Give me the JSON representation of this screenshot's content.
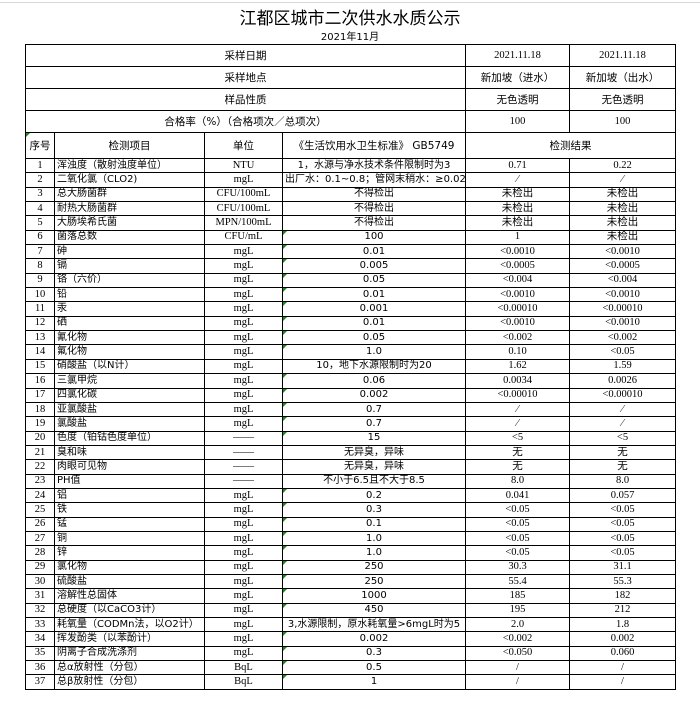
{
  "title": "江都区城市二次供水水质公示",
  "subtitle": "2021年11月",
  "summary": [
    {
      "label": "采样日期",
      "v1": "2021.11.18",
      "v2": "2021.11.18"
    },
    {
      "label": "采样地点",
      "v1": "新加坡（进水）",
      "v2": "新加坡（出水）"
    },
    {
      "label": "样品性质",
      "v1": "无色透明",
      "v2": "无色透明"
    },
    {
      "label": "合格率（%）（合格项次／总项次）",
      "v1": "100",
      "v2": "100"
    }
  ],
  "headers": {
    "no": "序号",
    "item": "检测项目",
    "unit": "单位",
    "standard": "《生活饮用水卫生标准》 GB5749",
    "result": "检测结果"
  },
  "rows": [
    [
      "1",
      "浑浊度（散射浊度单位）",
      "NTU",
      "1，水源与净水技术条件限制时为3",
      "0.71",
      "0.22"
    ],
    [
      "2",
      "二氧化氯（CLO2)",
      "mgL",
      "出厂水：0.1~0.8；管网末稍水：≥0.02",
      "⁄",
      "⁄"
    ],
    [
      "3",
      "总大肠菌群",
      "CFU/100mL",
      "不得检出",
      "未检出",
      "未检出"
    ],
    [
      "4",
      "耐热大肠菌群",
      "CFU/100mL",
      "不得检出",
      "未检出",
      "未检出"
    ],
    [
      "5",
      "大肠埃希氏菌",
      "MPN/100mL",
      "不得检出",
      "未检出",
      "未检出"
    ],
    [
      "6",
      "菌落总数",
      "CFU/mL",
      "100",
      "1",
      "未检出"
    ],
    [
      "7",
      "砷",
      "mgL",
      "0.01",
      "<0.0010",
      "<0.0010"
    ],
    [
      "8",
      "镉",
      "mgL",
      "0.005",
      "<0.0005",
      "<0.0005"
    ],
    [
      "9",
      "铬（六价）",
      "mgL",
      "0.05",
      "<0.004",
      "<0.004"
    ],
    [
      "10",
      "铅",
      "mgL",
      "0.01",
      "<0.0010",
      "<0.0010"
    ],
    [
      "11",
      "汞",
      "mgL",
      "0.001",
      "<0.00010",
      "<0.00010"
    ],
    [
      "12",
      "硒",
      "mgL",
      "0.01",
      "<0.0010",
      "<0.0010"
    ],
    [
      "13",
      "氰化物",
      "mgL",
      "0.05",
      "<0.002",
      "<0.002"
    ],
    [
      "14",
      "氟化物",
      "mgL",
      "1.0",
      "0.10",
      "<0.05"
    ],
    [
      "15",
      "硝酸盐（以N计）",
      "mgL",
      "10，地下水源限制时为20",
      "1.62",
      "1.59"
    ],
    [
      "16",
      "三氯甲烷",
      "mgL",
      "0.06",
      "0.0034",
      "0.0026"
    ],
    [
      "17",
      "四氯化碳",
      "mgL",
      "0.002",
      "<0.00010",
      "<0.00010"
    ],
    [
      "18",
      "亚氯酸盐",
      "mgL",
      "0.7",
      "⁄",
      "⁄"
    ],
    [
      "19",
      "氯酸盐",
      "mgL",
      "0.7",
      "⁄",
      "⁄"
    ],
    [
      "20",
      "色度（铂钴色度单位）",
      "——",
      "15",
      "<5",
      "<5"
    ],
    [
      "21",
      "臭和味",
      "——",
      "无异臭，异味",
      "无",
      "无"
    ],
    [
      "22",
      "肉眼可见物",
      "——",
      "无异臭，异味",
      "无",
      "无"
    ],
    [
      "23",
      "PH值",
      "——",
      "不小于6.5且不大于8.5",
      "8.0",
      "8.0"
    ],
    [
      "24",
      "铝",
      "mgL",
      "0.2",
      "0.041",
      "0.057"
    ],
    [
      "25",
      "铁",
      "mgL",
      "0.3",
      "<0.05",
      "<0.05"
    ],
    [
      "26",
      "锰",
      "mgL",
      "0.1",
      "<0.05",
      "<0.05"
    ],
    [
      "27",
      "铜",
      "mgL",
      "1.0",
      "<0.05",
      "<0.05"
    ],
    [
      "28",
      "锌",
      "mgL",
      "1.0",
      "<0.05",
      "<0.05"
    ],
    [
      "29",
      "氯化物",
      "mgL",
      "250",
      "30.3",
      "31.1"
    ],
    [
      "30",
      "硫酸盐",
      "mgL",
      "250",
      "55.4",
      "55.3"
    ],
    [
      "31",
      "溶解性总固体",
      "mgL",
      "1000",
      "185",
      "182"
    ],
    [
      "32",
      "总硬度（以CaCO3计）",
      "mgL",
      "450",
      "195",
      "212"
    ],
    [
      "33",
      "耗氧量（CODMn法，以O2计）",
      "mgL",
      "3,水源限制，原水耗氧量>6mgL时为5",
      "2.0",
      "1.8"
    ],
    [
      "34",
      "挥发酚类（以苯酚计）",
      "mgL",
      "0.002",
      "<0.002",
      "0.002"
    ],
    [
      "35",
      "阴离子合成洗涤剂",
      "mgL",
      "0.3",
      "<0.050",
      "0.060"
    ],
    [
      "36",
      "总α放射性（分包）",
      "BqL",
      "0.5",
      "/",
      "/"
    ],
    [
      "37",
      "总β放射性（分包）",
      "BqL",
      "1",
      "/",
      "/"
    ]
  ]
}
